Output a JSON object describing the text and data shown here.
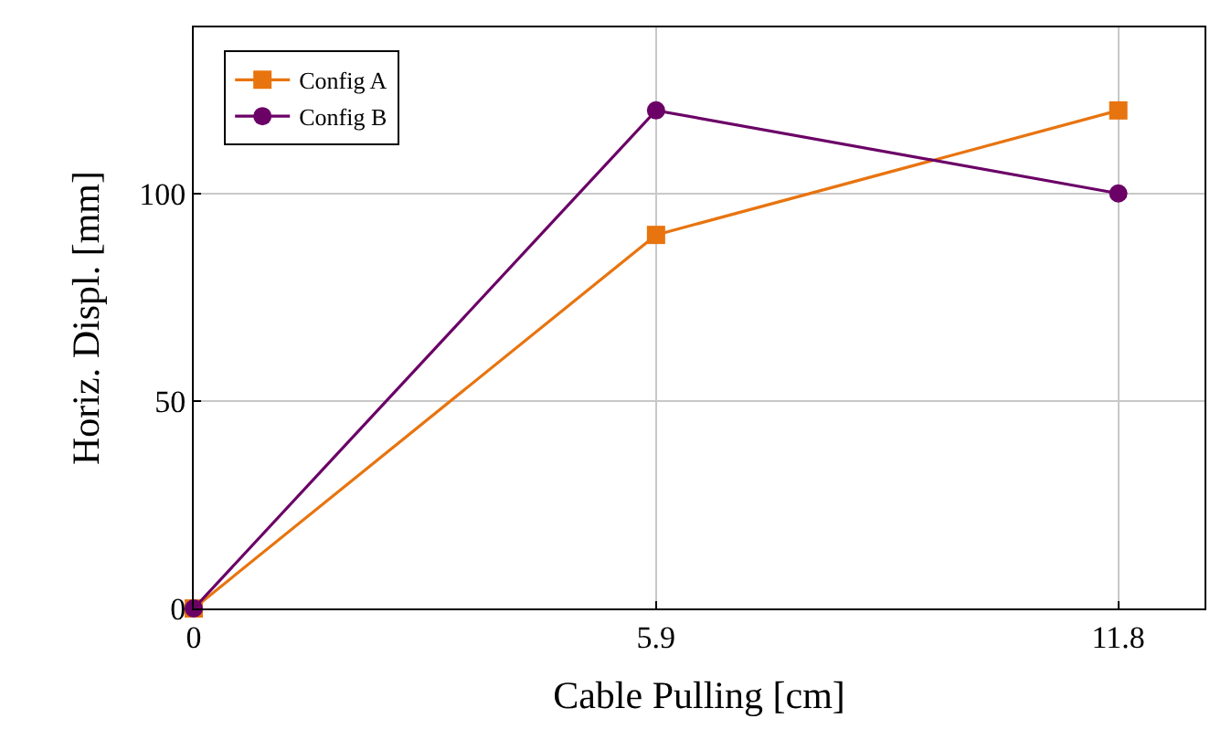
{
  "chart_data": {
    "type": "line",
    "xlabel": "Cable Pulling [cm]",
    "ylabel": "Horiz. Displ. [mm]",
    "x": [
      0,
      5.9,
      11.8
    ],
    "series": [
      {
        "name": "Config A",
        "color": "#e8740f",
        "values": [
          0,
          90,
          120
        ],
        "marker": "square"
      },
      {
        "name": "Config B",
        "color": "#6b0066",
        "values": [
          0,
          120,
          100
        ],
        "marker": "circle"
      }
    ],
    "xlim": [
      0,
      12.9
    ],
    "xticks": [
      0,
      5.9,
      11.8
    ],
    "ylim": [
      0,
      140
    ],
    "yticks": [
      0,
      50,
      100
    ],
    "grid": true,
    "legend": "top left",
    "line_style": "solid"
  }
}
